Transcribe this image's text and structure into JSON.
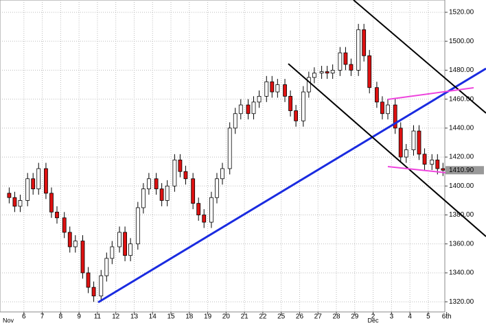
{
  "chart_data": {
    "type": "candlestick",
    "x": [
      -0.8,
      -0.5,
      -0.2,
      0.2,
      0.5,
      0.8,
      1.2,
      1.5,
      1.8,
      2.2,
      2.5,
      2.8,
      3.2,
      3.5,
      3.8,
      4.2,
      4.5,
      4.8,
      5.2,
      5.5,
      5.8,
      6.2,
      6.5,
      6.8,
      7.2,
      7.5,
      7.8,
      8.2,
      8.5,
      8.8,
      9.2,
      9.5,
      9.8,
      10.2,
      10.5,
      10.8,
      11.2,
      11.5,
      11.8,
      12.2,
      12.5,
      12.8,
      13.2,
      13.5,
      13.8,
      14.2,
      14.5,
      14.8,
      15.2,
      15.5,
      15.8,
      16.2,
      16.5,
      16.8,
      17.2,
      17.5,
      17.8,
      18.2,
      18.5,
      18.8,
      19.2,
      19.5,
      19.8,
      20.2,
      20.5,
      20.8,
      21.2,
      21.5,
      21.8,
      22.2,
      22.5,
      22.8
    ],
    "open": [
      1395,
      1392,
      1386,
      1390,
      1405,
      1398,
      1412,
      1395,
      1382,
      1378,
      1368,
      1358,
      1362,
      1340,
      1330,
      1324,
      1338,
      1350,
      1358,
      1368,
      1352,
      1360,
      1385,
      1398,
      1405,
      1398,
      1390,
      1400,
      1418,
      1410,
      1405,
      1388,
      1380,
      1375,
      1392,
      1405,
      1412,
      1440,
      1450,
      1456,
      1450,
      1458,
      1462,
      1472,
      1465,
      1470,
      1462,
      1452,
      1445,
      1465,
      1475,
      1478,
      1479,
      1478,
      1480,
      1492,
      1484,
      1480,
      1508,
      1490,
      1468,
      1458,
      1450,
      1456,
      1440,
      1420,
      1425,
      1438,
      1422,
      1415,
      1418,
      1412
    ],
    "high": [
      1399,
      1396,
      1394,
      1409,
      1409,
      1416,
      1416,
      1399,
      1386,
      1382,
      1372,
      1366,
      1366,
      1344,
      1334,
      1342,
      1354,
      1362,
      1372,
      1372,
      1364,
      1389,
      1402,
      1409,
      1409,
      1402,
      1404,
      1422,
      1422,
      1414,
      1409,
      1392,
      1384,
      1396,
      1409,
      1416,
      1444,
      1454,
      1460,
      1460,
      1462,
      1466,
      1476,
      1476,
      1474,
      1474,
      1466,
      1456,
      1469,
      1479,
      1482,
      1483,
      1483,
      1484,
      1496,
      1496,
      1488,
      1512,
      1512,
      1494,
      1472,
      1462,
      1460,
      1460,
      1444,
      1429,
      1442,
      1442,
      1426,
      1422,
      1422,
      1416
    ],
    "low": [
      1388,
      1382,
      1382,
      1386,
      1394,
      1394,
      1391,
      1378,
      1374,
      1364,
      1354,
      1354,
      1336,
      1326,
      1320,
      1320,
      1334,
      1346,
      1354,
      1348,
      1348,
      1356,
      1381,
      1394,
      1394,
      1386,
      1386,
      1396,
      1406,
      1401,
      1384,
      1376,
      1371,
      1371,
      1388,
      1401,
      1408,
      1436,
      1446,
      1446,
      1446,
      1454,
      1458,
      1461,
      1461,
      1458,
      1448,
      1441,
      1441,
      1461,
      1471,
      1474,
      1474,
      1474,
      1476,
      1480,
      1476,
      1476,
      1486,
      1464,
      1454,
      1446,
      1446,
      1436,
      1416,
      1416,
      1421,
      1418,
      1411,
      1411,
      1408,
      1406.9
    ],
    "close": [
      1392,
      1386,
      1390,
      1405,
      1398,
      1412,
      1395,
      1382,
      1378,
      1368,
      1358,
      1362,
      1340,
      1330,
      1324,
      1338,
      1350,
      1358,
      1368,
      1352,
      1360,
      1385,
      1398,
      1405,
      1398,
      1390,
      1400,
      1418,
      1410,
      1405,
      1388,
      1380,
      1375,
      1392,
      1405,
      1412,
      1440,
      1450,
      1456,
      1450,
      1458,
      1462,
      1472,
      1465,
      1470,
      1462,
      1452,
      1445,
      1465,
      1475,
      1478,
      1479,
      1478,
      1480,
      1492,
      1484,
      1480,
      1508,
      1490,
      1468,
      1458,
      1450,
      1456,
      1440,
      1420,
      1425,
      1438,
      1422,
      1415,
      1418,
      1412,
      1410.9
    ],
    "up_color": "#ffffff",
    "down_color": "#dd1111",
    "xlim": [
      -1.3,
      22.9
    ],
    "ylim": [
      1313,
      1528.5
    ],
    "xticks": [
      {
        "value": 0,
        "label": "6"
      },
      {
        "value": 1,
        "label": "7"
      },
      {
        "value": 2,
        "label": "8"
      },
      {
        "value": 3,
        "label": "9"
      },
      {
        "value": 4,
        "label": "11"
      },
      {
        "value": 5,
        "label": "12"
      },
      {
        "value": 6,
        "label": "13"
      },
      {
        "value": 7,
        "label": "14"
      },
      {
        "value": 8,
        "label": "15"
      },
      {
        "value": 9,
        "label": "18"
      },
      {
        "value": 10,
        "label": "19"
      },
      {
        "value": 11,
        "label": "20"
      },
      {
        "value": 12,
        "label": "21"
      },
      {
        "value": 13,
        "label": "22"
      },
      {
        "value": 14,
        "label": "25"
      },
      {
        "value": 15,
        "label": "26"
      },
      {
        "value": 16,
        "label": "27"
      },
      {
        "value": 17,
        "label": "28"
      },
      {
        "value": 18,
        "label": "29"
      },
      {
        "value": 19,
        "label": "2"
      },
      {
        "value": 20,
        "label": "3"
      },
      {
        "value": 21,
        "label": "4"
      },
      {
        "value": 22,
        "label": "5"
      },
      {
        "value": 23,
        "label": "6th"
      }
    ],
    "yticks": [
      {
        "value": 1320,
        "label": "1320.00"
      },
      {
        "value": 1340,
        "label": "1340.00"
      },
      {
        "value": 1360,
        "label": "1360.00"
      },
      {
        "value": 1380,
        "label": "1380.00"
      },
      {
        "value": 1400,
        "label": "1400.00"
      },
      {
        "value": 1420,
        "label": "1420.00"
      },
      {
        "value": 1440,
        "label": "1440.00"
      },
      {
        "value": 1460,
        "label": "1460.00"
      },
      {
        "value": 1480,
        "label": "1480.00"
      },
      {
        "value": 1500,
        "label": "1500.00"
      },
      {
        "value": 1520,
        "label": "1520.00"
      }
    ],
    "months": [
      "Nov",
      "Dec"
    ],
    "last_label": {
      "value": 1410.9,
      "label": "1410.90"
    },
    "grid": true
  }
}
